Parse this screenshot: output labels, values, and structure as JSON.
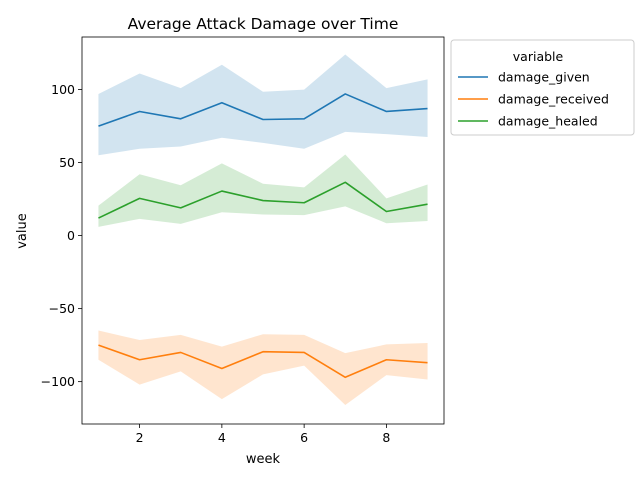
{
  "chart_data": {
    "type": "line",
    "title": "Average Attack Damage over Time",
    "xlabel": "week",
    "ylabel": "value",
    "x": [
      1,
      2,
      3,
      4,
      5,
      6,
      7,
      8,
      9
    ],
    "xlim": [
      0.6,
      9.4
    ],
    "ylim": [
      -129,
      136
    ],
    "xticks": [
      2,
      4,
      6,
      8
    ],
    "yticks": [
      -100,
      -50,
      0,
      50,
      100
    ],
    "ytick_labels": [
      "−100",
      "−50",
      "0",
      "50",
      "100"
    ],
    "grid": false,
    "legend": {
      "title": "variable",
      "placement": "outside-upper-right"
    },
    "series": [
      {
        "name": "damage_given",
        "color": "#1f77b4",
        "band_color": "#1f77b4",
        "values": [
          75,
          85,
          80,
          91,
          79.5,
          80,
          97,
          85,
          87
        ],
        "upper": [
          97,
          111,
          101,
          117,
          98.5,
          100,
          124,
          101,
          107
        ],
        "lower": [
          55,
          59.5,
          61,
          67,
          63.5,
          59.5,
          71,
          69.5,
          67.5
        ]
      },
      {
        "name": "damage_received",
        "color": "#ff7f0e",
        "band_color": "#ff7f0e",
        "values": [
          -75,
          -85,
          -80,
          -91,
          -79.5,
          -80,
          -97,
          -85,
          -87
        ],
        "upper": [
          -65,
          -71.5,
          -68,
          -76,
          -67.5,
          -68,
          -80.5,
          -74.5,
          -73.5
        ],
        "lower": [
          -85,
          -102,
          -93,
          -112,
          -95,
          -89,
          -116,
          -95.5,
          -98.5
        ]
      },
      {
        "name": "damage_healed",
        "color": "#2ca02c",
        "band_color": "#2ca02c",
        "values": [
          12,
          25.5,
          19,
          30.5,
          24,
          22.5,
          36.5,
          16.5,
          21.5
        ],
        "upper": [
          20.5,
          42,
          34.5,
          49.5,
          35.5,
          33,
          55.5,
          25.5,
          35
        ],
        "lower": [
          6,
          11.5,
          8,
          16,
          14.5,
          14,
          20,
          8.5,
          10
        ]
      }
    ]
  }
}
